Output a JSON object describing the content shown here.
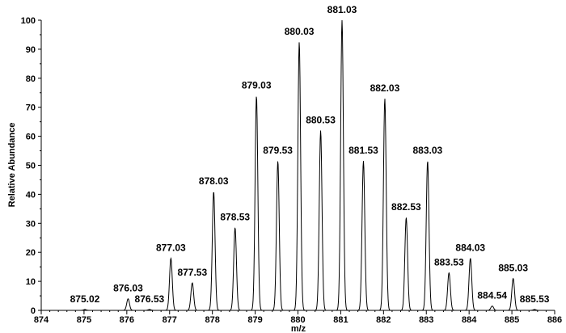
{
  "chart_data": {
    "type": "line",
    "xlabel": "m/z",
    "ylabel": "Relative Abundance",
    "xlim": [
      874,
      886
    ],
    "ylim": [
      0,
      100
    ],
    "x_ticks": [
      "874",
      "875",
      "876",
      "877",
      "878",
      "879",
      "880",
      "881",
      "882",
      "883",
      "884",
      "885",
      "886"
    ],
    "y_ticks": [
      "0",
      "10",
      "20",
      "30",
      "40",
      "50",
      "60",
      "70",
      "80",
      "90",
      "100"
    ],
    "grid": false,
    "line_color": "#000000",
    "peaks": [
      {
        "mz": 875.02,
        "abundance": 0.3,
        "label": "875.02"
      },
      {
        "mz": 876.03,
        "abundance": 4,
        "label": "876.03"
      },
      {
        "mz": 876.53,
        "abundance": 0.3,
        "label": "876.53"
      },
      {
        "mz": 877.03,
        "abundance": 18,
        "label": "877.03"
      },
      {
        "mz": 877.53,
        "abundance": 9.5,
        "label": "877.53"
      },
      {
        "mz": 878.03,
        "abundance": 41,
        "label": "878.03"
      },
      {
        "mz": 878.53,
        "abundance": 28.5,
        "label": "878.53"
      },
      {
        "mz": 879.03,
        "abundance": 74,
        "label": "879.03"
      },
      {
        "mz": 879.53,
        "abundance": 51.5,
        "label": "879.53"
      },
      {
        "mz": 880.03,
        "abundance": 92.5,
        "label": "880.03"
      },
      {
        "mz": 880.53,
        "abundance": 62,
        "label": "880.53"
      },
      {
        "mz": 881.03,
        "abundance": 100,
        "label": "881.03"
      },
      {
        "mz": 881.53,
        "abundance": 51.5,
        "label": "881.53"
      },
      {
        "mz": 882.03,
        "abundance": 73,
        "label": "882.03"
      },
      {
        "mz": 882.53,
        "abundance": 32,
        "label": "882.53"
      },
      {
        "mz": 883.03,
        "abundance": 51.5,
        "label": "883.03"
      },
      {
        "mz": 883.53,
        "abundance": 13,
        "label": "883.53"
      },
      {
        "mz": 884.03,
        "abundance": 18,
        "label": "884.03"
      },
      {
        "mz": 884.54,
        "abundance": 1.5,
        "label": "884.54"
      },
      {
        "mz": 885.03,
        "abundance": 11,
        "label": "885.03"
      },
      {
        "mz": 885.53,
        "abundance": 0.3,
        "label": "885.53"
      }
    ]
  }
}
